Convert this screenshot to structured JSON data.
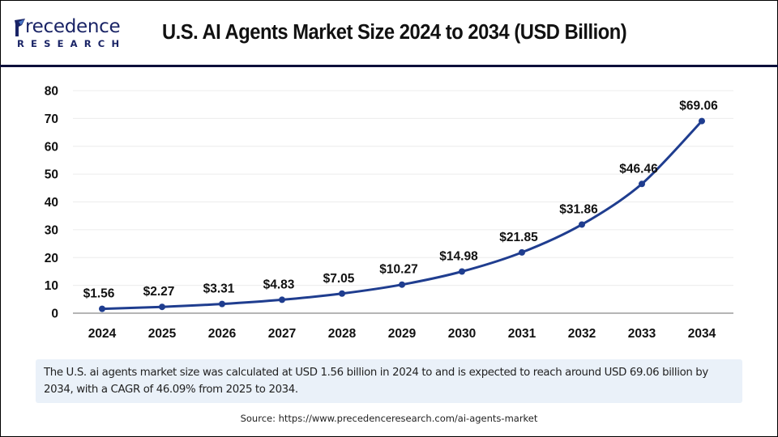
{
  "header": {
    "logo": {
      "word": "recedence",
      "initial": "P",
      "sub": "RESEARCH",
      "icon": "precedence-logo-icon"
    },
    "title": "U.S. AI Agents Market Size 2024 to 2034 (USD Billion)"
  },
  "colors": {
    "line": "#1f3d8f",
    "header_rule": "#0c0f3a",
    "note_bg": "#eaf1f9",
    "grid": "#ececec",
    "axis": "#b5b5b5"
  },
  "chart_data": {
    "type": "line",
    "title": "U.S. AI Agents Market Size 2024 to 2034 (USD Billion)",
    "xlabel": "",
    "ylabel": "",
    "categories": [
      "2024",
      "2025",
      "2026",
      "2027",
      "2028",
      "2029",
      "2030",
      "2031",
      "2032",
      "2033",
      "2034"
    ],
    "series": [
      {
        "name": "U.S. AI Agents Market Size (USD Billion)",
        "values": [
          1.56,
          2.27,
          3.31,
          4.83,
          7.05,
          10.27,
          14.98,
          21.85,
          31.86,
          46.46,
          69.06
        ],
        "labels": [
          "$1.56",
          "$2.27",
          "$3.31",
          "$4.83",
          "$7.05",
          "$10.27",
          "$14.98",
          "$21.85",
          "$31.86",
          "$46.46",
          "$69.06"
        ]
      }
    ],
    "ylim": [
      0,
      80
    ],
    "yticks": [
      0,
      10,
      20,
      30,
      40,
      50,
      60,
      70,
      80
    ],
    "grid": true,
    "legend": "none"
  },
  "note": {
    "text": "The U.S. ai agents market size was calculated at USD 1.56  billion in 2024 to and is expected to reach around USD 69.06 billion by 2034, with a CAGR of 46.09% from 2025 to 2034."
  },
  "source": "Source: https://www.precedenceresearch.com/ai-agents-market"
}
